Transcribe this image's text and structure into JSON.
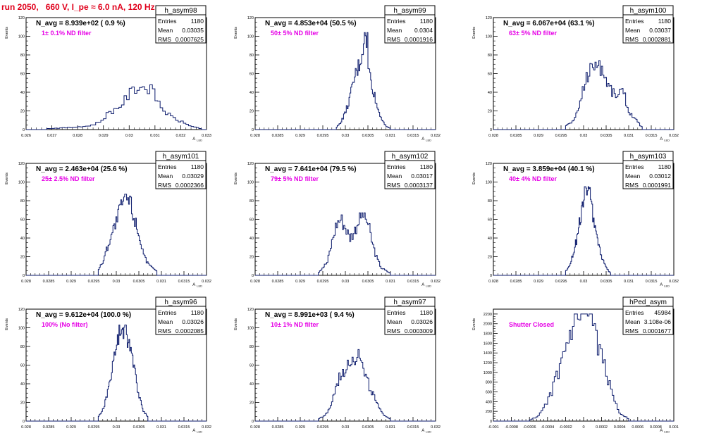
{
  "page": {
    "title": "run 2050,   660 V, I_pe ≈ 6.0 nA, 120 Hz",
    "colors": {
      "title": "#e0001b",
      "annotation": "#e600e6",
      "hist": "#0b1a6b",
      "axis": "#000000"
    }
  },
  "stats_labels": {
    "entries": "Entries",
    "mean": "Mean",
    "rms": "RMS"
  },
  "ylabel": "Events",
  "chart_data": [
    {
      "type": "histogram",
      "name": "h_asym98",
      "header": "N_avg = 8.939e+02 ( 0.9 %)",
      "note": "1± 0.1% ND filter",
      "stats": {
        "entries": "1180",
        "mean": "0.03035",
        "rms": "0.0007625"
      },
      "xlabel": "A",
      "xlabel_sub": "LED",
      "xlim": [
        0.026,
        0.033
      ],
      "xticks": [
        "0.026",
        "0.027",
        "0.028",
        "0.029",
        "0.03",
        "0.031",
        "0.032",
        "0.033"
      ],
      "ylim": [
        0,
        120
      ],
      "yticks": [
        "0",
        "20",
        "40",
        "60",
        "80",
        "100",
        "120"
      ],
      "peak": 48,
      "x": [
        0.0268,
        0.0276,
        0.0282,
        0.0286,
        0.0289,
        0.0292,
        0.0295,
        0.0298,
        0.03,
        0.0302,
        0.0304,
        0.0306,
        0.0308,
        0.031,
        0.0313,
        0.0316,
        0.0319,
        0.0322,
        0.0325,
        0.0328
      ],
      "values": [
        1,
        2,
        3,
        5,
        9,
        18,
        22,
        30,
        38,
        43,
        48,
        44,
        45,
        36,
        22,
        14,
        10,
        6,
        3,
        1
      ]
    },
    {
      "type": "histogram",
      "name": "h_asym99",
      "header": "N_avg = 4.853e+04 (50.5 %)",
      "note": "50± 5% ND filter",
      "stats": {
        "entries": "1180",
        "mean": "0.0304",
        "rms": "0.0001916"
      },
      "xlabel": "A",
      "xlabel_sub": "LED",
      "xlim": [
        0.028,
        0.032
      ],
      "xticks": [
        "0.028",
        "0.0285",
        "0.029",
        "0.0295",
        "0.03",
        "0.0305",
        "0.031",
        "0.0315",
        "0.032"
      ],
      "ylim": [
        0,
        120
      ],
      "yticks": [
        "0",
        "20",
        "40",
        "60",
        "80",
        "100",
        "120"
      ],
      "peak": 104,
      "x": [
        0.0298,
        0.0299,
        0.03,
        0.0301,
        0.0302,
        0.0303,
        0.0304,
        0.0304,
        0.0305,
        0.0305,
        0.0306,
        0.0307,
        0.0308,
        0.0309,
        0.031
      ],
      "values": [
        2,
        8,
        18,
        33,
        55,
        68,
        88,
        104,
        95,
        68,
        46,
        25,
        12,
        4,
        1
      ]
    },
    {
      "type": "histogram",
      "name": "h_asym100",
      "header": "N_avg = 6.067e+04 (63.1 %)",
      "note": "63± 5% ND filter",
      "stats": {
        "entries": "1180",
        "mean": "0.03037",
        "rms": "0.0002881"
      },
      "xlabel": "A",
      "xlabel_sub": "LED",
      "xlim": [
        0.028,
        0.032
      ],
      "xticks": [
        "0.028",
        "0.0285",
        "0.029",
        "0.0295",
        "0.03",
        "0.0305",
        "0.031",
        "0.0315",
        "0.032"
      ],
      "ylim": [
        0,
        120
      ],
      "yticks": [
        "0",
        "20",
        "40",
        "60",
        "80",
        "100",
        "120"
      ],
      "peak": 74,
      "x": [
        0.0296,
        0.0298,
        0.0299,
        0.03,
        0.0301,
        0.0302,
        0.0303,
        0.0304,
        0.0305,
        0.0306,
        0.0307,
        0.0308,
        0.0309,
        0.031,
        0.0312,
        0.0313
      ],
      "values": [
        4,
        10,
        25,
        46,
        60,
        68,
        74,
        66,
        54,
        44,
        36,
        42,
        38,
        20,
        8,
        2
      ]
    },
    {
      "type": "histogram",
      "name": "h_asym101",
      "header": "N_avg = 2.463e+04 (25.6 %)",
      "note": "25± 2.5% ND filter",
      "stats": {
        "entries": "1180",
        "mean": "0.03029",
        "rms": "0.0002366"
      },
      "xlabel": "A",
      "xlabel_sub": "LED",
      "xlim": [
        0.028,
        0.032
      ],
      "xticks": [
        "0.028",
        "0.0285",
        "0.029",
        "0.0295",
        "0.03",
        "0.0305",
        "0.031",
        "0.0315",
        "0.032"
      ],
      "ylim": [
        0,
        120
      ],
      "yticks": [
        "0",
        "20",
        "40",
        "60",
        "80",
        "100",
        "120"
      ],
      "peak": 87,
      "x": [
        0.0296,
        0.0297,
        0.0298,
        0.0299,
        0.03,
        0.0301,
        0.0302,
        0.0303,
        0.0304,
        0.0305,
        0.0306,
        0.0307,
        0.0309
      ],
      "values": [
        6,
        14,
        30,
        45,
        57,
        72,
        87,
        80,
        62,
        44,
        25,
        12,
        4
      ]
    },
    {
      "type": "histogram",
      "name": "h_asym102",
      "header": "N_avg = 7.641e+04 (79.5 %)",
      "note": "79± 5% ND filter",
      "stats": {
        "entries": "1180",
        "mean": "0.03017",
        "rms": "0.0003137"
      },
      "xlabel": "A",
      "xlabel_sub": "LED",
      "xlim": [
        0.028,
        0.032
      ],
      "xticks": [
        "0.028",
        "0.0285",
        "0.029",
        "0.0295",
        "0.03",
        "0.0305",
        "0.031",
        "0.0315",
        "0.032"
      ],
      "ylim": [
        0,
        120
      ],
      "yticks": [
        "0",
        "20",
        "40",
        "60",
        "80",
        "100",
        "120"
      ],
      "peak": 67,
      "x": [
        0.0294,
        0.0296,
        0.0297,
        0.0298,
        0.0299,
        0.03,
        0.0301,
        0.0302,
        0.0303,
        0.0304,
        0.0305,
        0.0306,
        0.0307,
        0.0308,
        0.031
      ],
      "values": [
        3,
        14,
        35,
        55,
        61,
        52,
        40,
        47,
        60,
        67,
        56,
        34,
        18,
        8,
        2
      ]
    },
    {
      "type": "histogram",
      "name": "h_asym103",
      "header": "N_avg = 3.859e+04 (40.1 %)",
      "note": "40± 4% ND filter",
      "stats": {
        "entries": "1180",
        "mean": "0.03012",
        "rms": "0.0001991"
      },
      "xlabel": "A",
      "xlabel_sub": "LED",
      "xlim": [
        0.028,
        0.032
      ],
      "xticks": [
        "0.028",
        "0.0285",
        "0.029",
        "0.0295",
        "0.03",
        "0.0305",
        "0.031",
        "0.0315",
        "0.032"
      ],
      "ylim": [
        0,
        120
      ],
      "yticks": [
        "0",
        "20",
        "40",
        "60",
        "80",
        "100",
        "120"
      ],
      "peak": 95,
      "x": [
        0.0296,
        0.0297,
        0.0298,
        0.0299,
        0.03,
        0.03,
        0.0301,
        0.0302,
        0.0303,
        0.0304,
        0.0305,
        0.0306
      ],
      "values": [
        4,
        12,
        28,
        52,
        75,
        95,
        92,
        70,
        40,
        20,
        8,
        2
      ]
    },
    {
      "type": "histogram",
      "name": "h_asym96",
      "header": "N_avg = 9.612e+04 (100.0 %)",
      "note": "100% (No filter)",
      "stats": {
        "entries": "1180",
        "mean": "0.03026",
        "rms": "0.0002085"
      },
      "xlabel": "A",
      "xlabel_sub": "LED",
      "xlim": [
        0.028,
        0.032
      ],
      "xticks": [
        "0.028",
        "0.0285",
        "0.029",
        "0.0295",
        "0.03",
        "0.0305",
        "0.031",
        "0.0315",
        "0.032"
      ],
      "ylim": [
        0,
        120
      ],
      "yticks": [
        "0",
        "20",
        "40",
        "60",
        "80",
        "100",
        "120"
      ],
      "peak": 103,
      "x": [
        0.0296,
        0.0297,
        0.0298,
        0.0299,
        0.03,
        0.0301,
        0.0302,
        0.0303,
        0.0304,
        0.0305,
        0.0306,
        0.0307
      ],
      "values": [
        4,
        12,
        28,
        55,
        78,
        98,
        103,
        82,
        55,
        28,
        12,
        4
      ]
    },
    {
      "type": "histogram",
      "name": "h_asym97",
      "header": "N_avg = 8.991e+03 ( 9.4 %)",
      "note": "10± 1% ND filter",
      "stats": {
        "entries": "1180",
        "mean": "0.03026",
        "rms": "0.0003009"
      },
      "xlabel": "A",
      "xlabel_sub": "LED",
      "xlim": [
        0.028,
        0.032
      ],
      "xticks": [
        "0.028",
        "0.0285",
        "0.029",
        "0.0295",
        "0.03",
        "0.0305",
        "0.031",
        "0.0315",
        "0.032"
      ],
      "ylim": [
        0,
        120
      ],
      "yticks": [
        "0",
        "20",
        "40",
        "60",
        "80",
        "100",
        "120"
      ],
      "peak": 83,
      "x": [
        0.0294,
        0.0296,
        0.0297,
        0.0298,
        0.0299,
        0.03,
        0.0301,
        0.0302,
        0.0303,
        0.0304,
        0.0305,
        0.0306,
        0.0307,
        0.0308,
        0.031
      ],
      "values": [
        2,
        8,
        20,
        38,
        50,
        58,
        70,
        62,
        83,
        52,
        42,
        30,
        18,
        9,
        2
      ]
    },
    {
      "type": "histogram",
      "name": "hPed_asym",
      "header": "",
      "note": "Shutter Closed",
      "stats": {
        "entries": "45984",
        "mean": "3.108e-06",
        "rms": "0.0001677"
      },
      "xlabel": "A",
      "xlabel_sub": "LED",
      "xlim": [
        -0.001,
        0.001
      ],
      "xticks": [
        "-0.001",
        "-0.0008",
        "-0.0006",
        "-0.0004",
        "-0.0002",
        "0",
        "0.0002",
        "0.0004",
        "0.0006",
        "0.0008",
        "0.001"
      ],
      "ylim": [
        0,
        2300
      ],
      "yticks": [
        "0",
        "200",
        "400",
        "600",
        "800",
        "1000",
        "1200",
        "1400",
        "1600",
        "1800",
        "2000",
        "2200"
      ],
      "peak": 2200,
      "x": [
        -0.0006,
        -0.0005,
        -0.0004,
        -0.0003,
        -0.0002,
        -0.0001,
        0.0,
        0.0001,
        0.0002,
        0.0003,
        0.0004,
        0.0005
      ],
      "values": [
        20,
        100,
        380,
        880,
        1450,
        1950,
        2200,
        1950,
        1350,
        650,
        180,
        40
      ]
    }
  ]
}
